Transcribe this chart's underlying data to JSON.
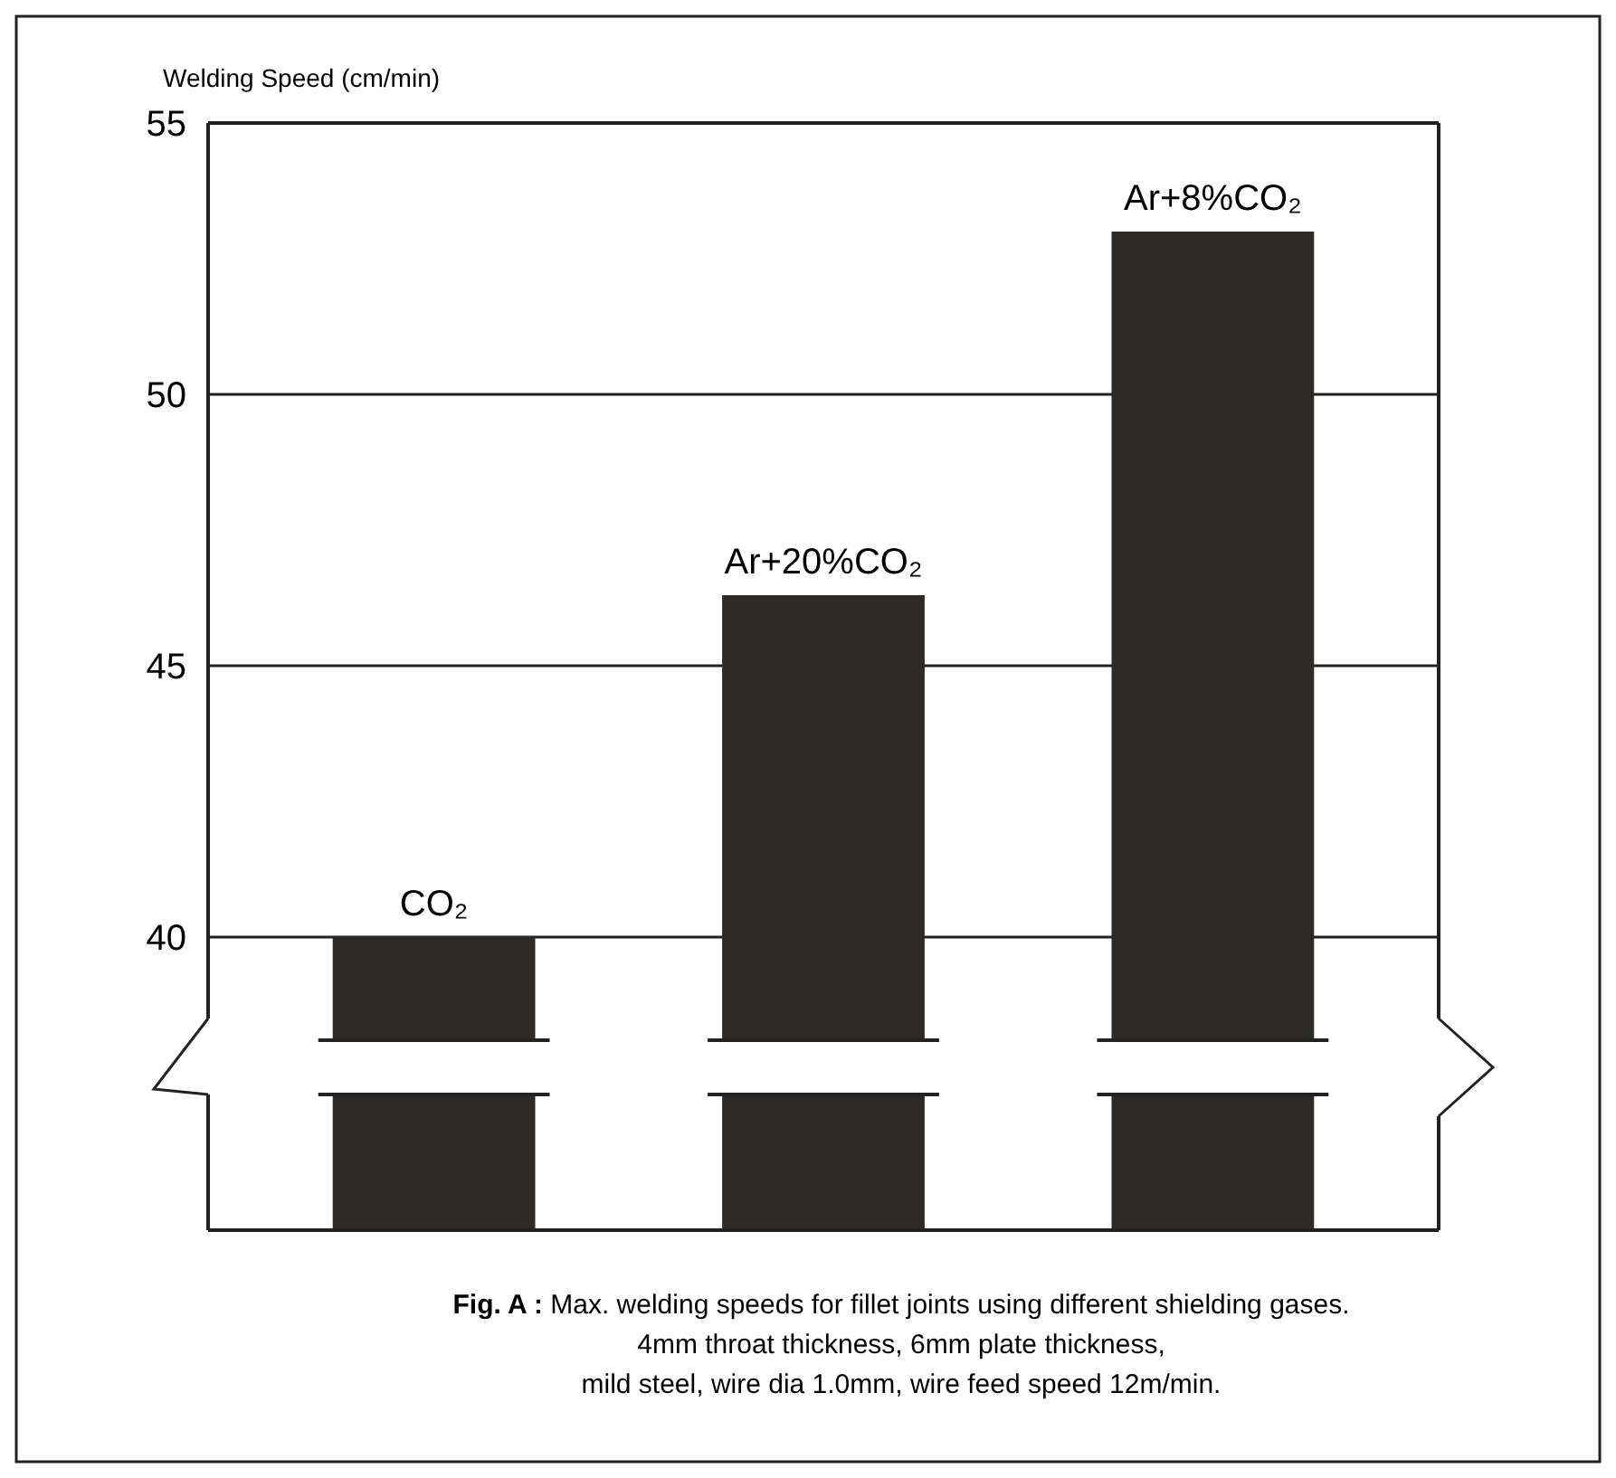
{
  "chart_data": {
    "type": "bar",
    "ylabel": "Welding Speed (cm/min)",
    "categories": [
      "CO₂",
      "Ar+20%CO₂",
      "Ar+8%CO₂"
    ],
    "values": [
      40,
      46.3,
      53
    ],
    "color": "#2e2a27",
    "ylim": [
      34.6,
      55
    ],
    "yticks": [
      40,
      45,
      50,
      55
    ],
    "grid": "y",
    "annotations": [
      "Fig. A :",
      "Max. welding speeds for fillet joints using different shielding gases.",
      "4mm throat thickness, 6mm plate thickness,",
      "mild steel, wire dia 1.0mm, wire feed speed 12m/min."
    ]
  }
}
